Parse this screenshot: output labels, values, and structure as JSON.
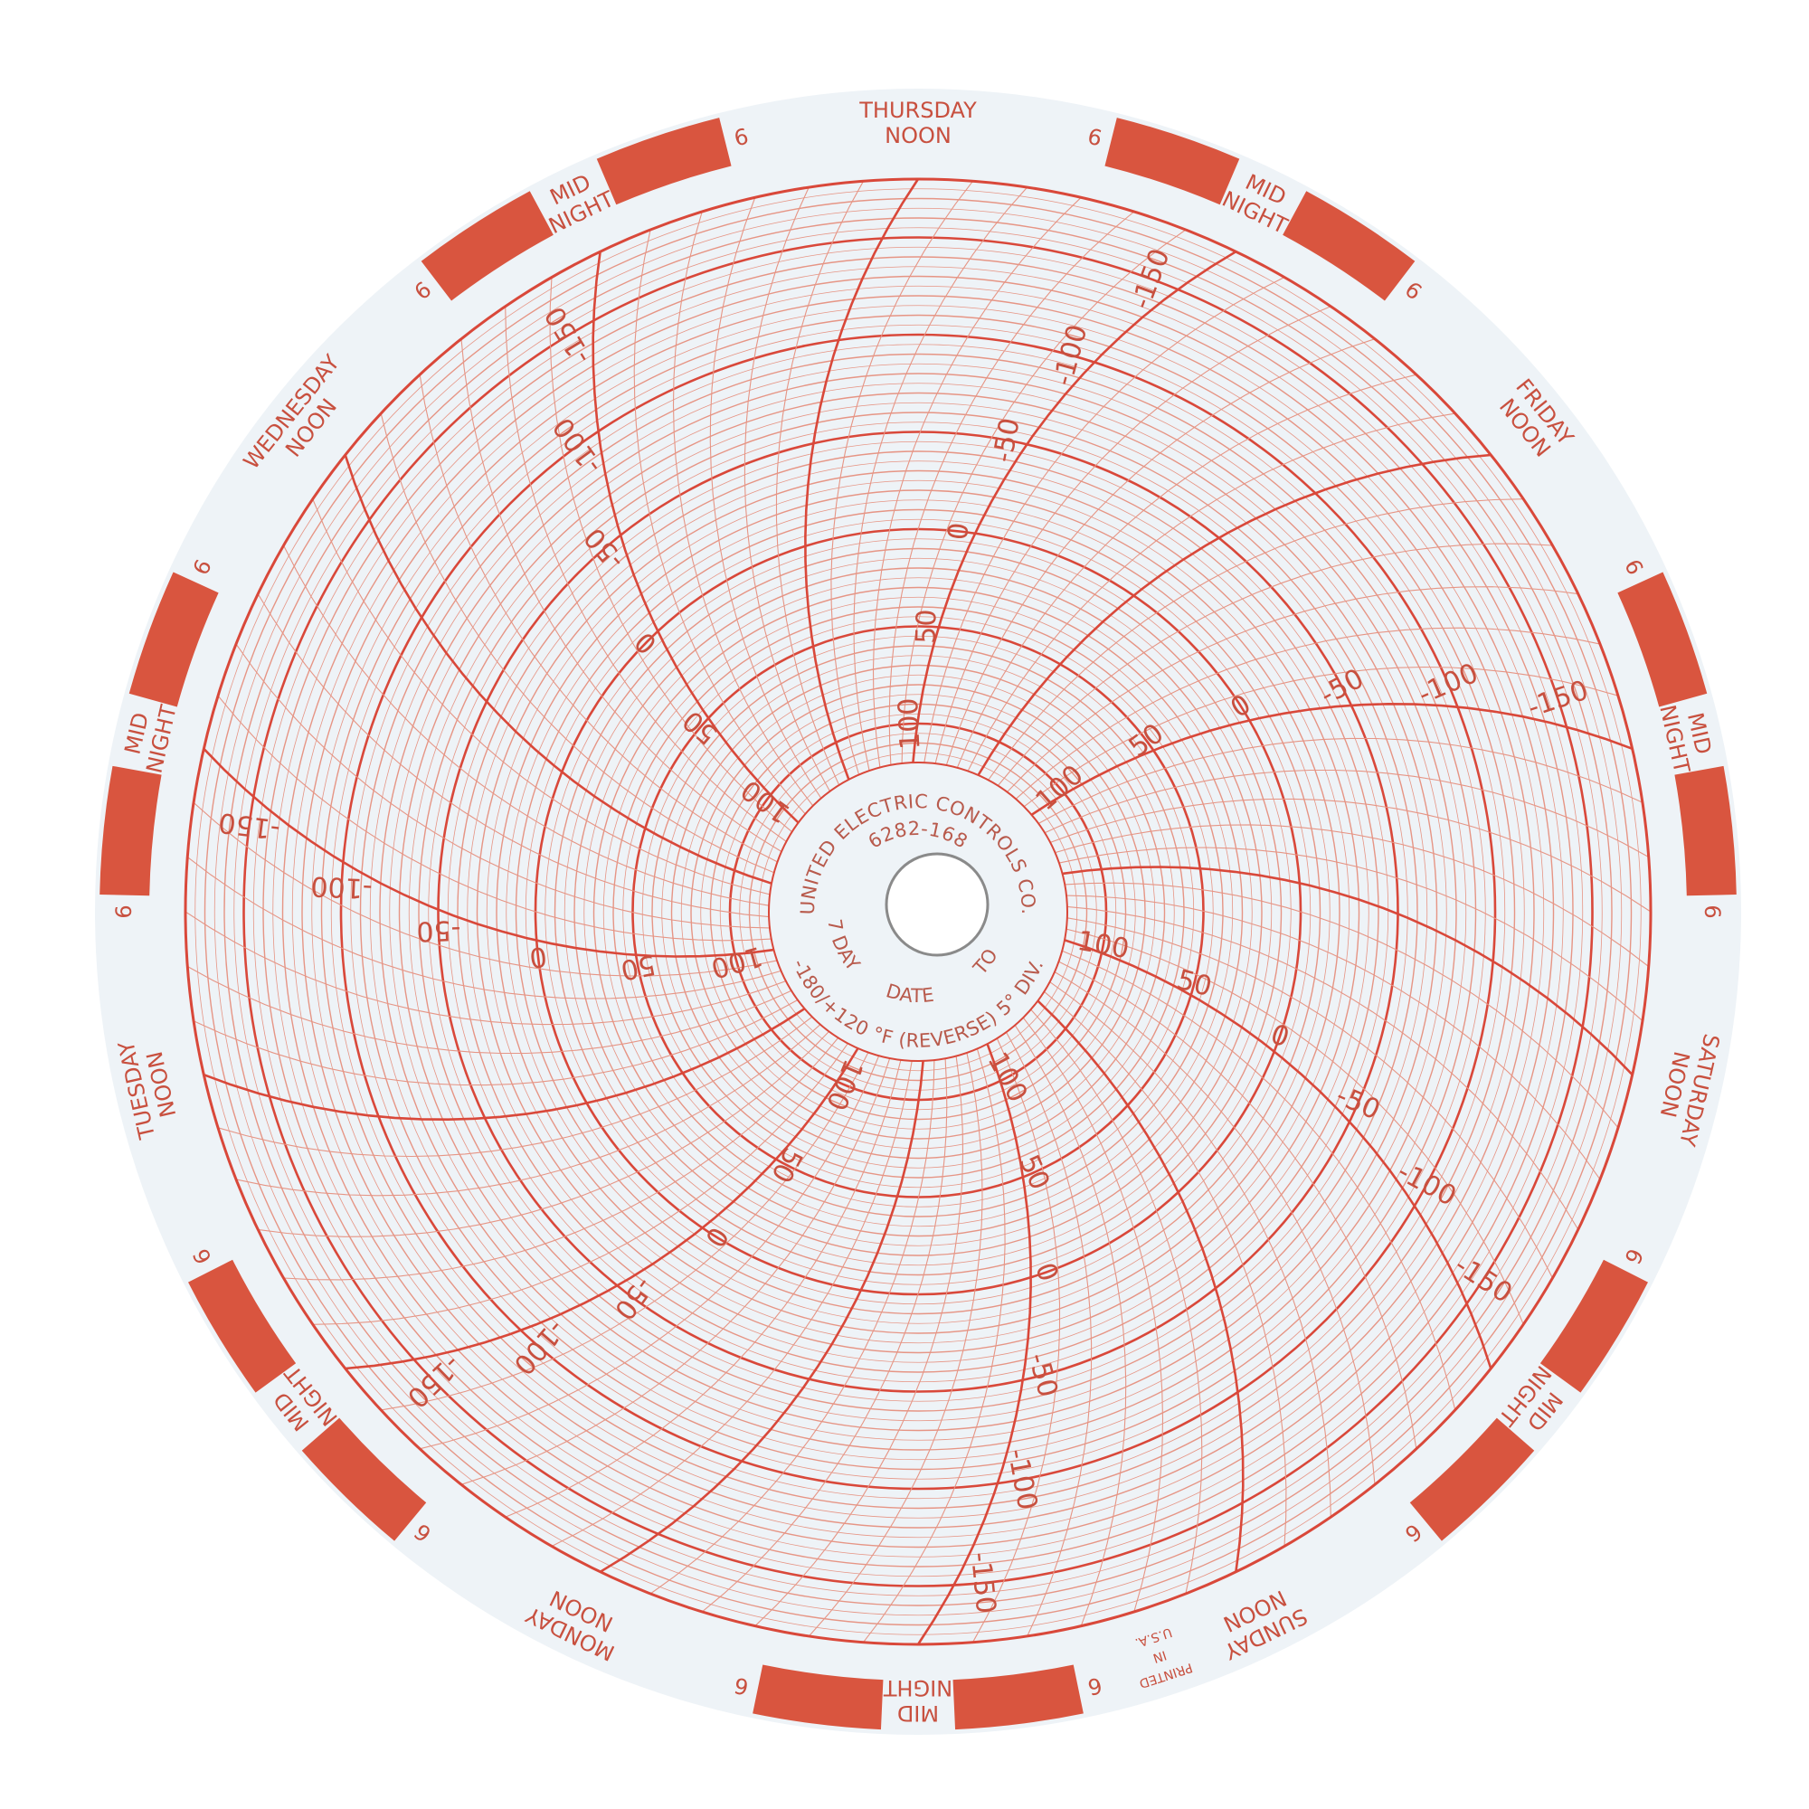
{
  "chart_paper": {
    "manufacturer": "UNITED ELECTRIC CONTROLS CO.",
    "part_number": "6282-168",
    "range_text": "-180/+120 °F (REVERSE) 5° DIV.",
    "duration_text": "7 DAY",
    "date_label": "DATE",
    "to_label": "TO",
    "printed_in": [
      "PRINTED",
      "IN",
      "U.S.A."
    ],
    "days": [
      "THURSDAY",
      "FRIDAY",
      "SATURDAY",
      "SUNDAY",
      "MONDAY",
      "TUESDAY",
      "WEDNESDAY"
    ],
    "noon_label": "NOON",
    "midnight_label": [
      "MID",
      "NIGHT"
    ],
    "six_label": "6",
    "scale_labels": [
      "100",
      "50",
      "0",
      "-50",
      "-100",
      "-150"
    ],
    "scale_values": [
      100,
      50,
      0,
      -50,
      -100,
      -150
    ],
    "range_min": -180,
    "range_max": 120,
    "division": 5,
    "colors": {
      "grid": "#d9483a",
      "grid_light": "#e69585",
      "paper": "#eef3f7",
      "band": "#d9553f"
    }
  }
}
